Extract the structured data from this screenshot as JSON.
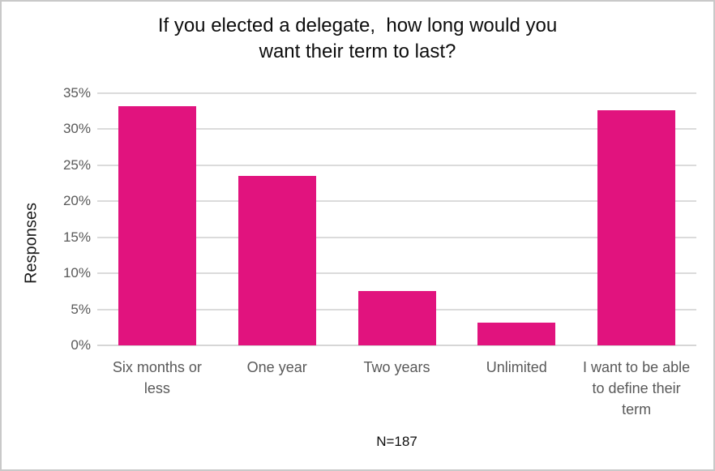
{
  "chart_data": {
    "type": "bar",
    "title": "If you elected a delegate, how long would you want their term to last?",
    "title_lines": [
      "If you elected a delegate,  how long would you",
      "want their term to last?"
    ],
    "ylabel": "Responses",
    "footnote": "N=187",
    "categories": [
      "Six months or less",
      "One year",
      "Two years",
      "Unlimited",
      "I want to be able to define their term"
    ],
    "values": [
      33.2,
      23.5,
      7.5,
      3.2,
      32.6
    ],
    "ylim": [
      0,
      35
    ],
    "yticks": [
      {
        "label": "0%",
        "value": 0
      },
      {
        "label": "5%",
        "value": 5
      },
      {
        "label": "10%",
        "value": 10
      },
      {
        "label": "15%",
        "value": 15
      },
      {
        "label": "20%",
        "value": 20
      },
      {
        "label": "25%",
        "value": 25
      },
      {
        "label": "30%",
        "value": 30
      },
      {
        "label": "35%",
        "value": 35
      }
    ],
    "grid": true,
    "legend": "none",
    "colors": {
      "bar": "#E1137E",
      "gridline": "#DBDBDB",
      "axis_line": "#D6D6D6",
      "tick_label": "#595959",
      "title": "#0D0D0D",
      "background": "#FFFFFF",
      "frame_border": "#C9C9C9"
    }
  }
}
